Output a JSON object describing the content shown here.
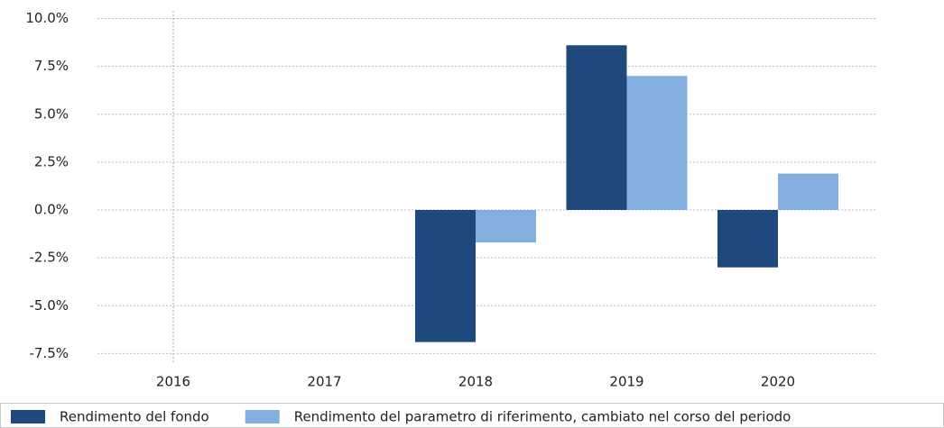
{
  "chart_data": {
    "type": "bar",
    "categories": [
      "2016",
      "2017",
      "2018",
      "2019",
      "2020"
    ],
    "series": [
      {
        "name": "Rendimento del fondo",
        "color": "#1f497d",
        "values": [
          null,
          null,
          -6.9,
          8.6,
          -3.0
        ]
      },
      {
        "name": "Rendimento del parametro di riferimento, cambiato nel corso del periodo",
        "color": "#84aee0",
        "values": [
          null,
          null,
          -1.7,
          7.0,
          1.9
        ]
      }
    ],
    "ylim": [
      -8,
      10.4
    ],
    "yticks": [
      {
        "value": -7.5,
        "label": "-7.5%"
      },
      {
        "value": -5,
        "label": "-5.0%"
      },
      {
        "value": -2.5,
        "label": "-2.5%"
      },
      {
        "value": 0,
        "label": "0.0%"
      },
      {
        "value": 2.5,
        "label": "2.5%"
      },
      {
        "value": 5,
        "label": "5.0%"
      },
      {
        "value": 7.5,
        "label": "7.5%"
      },
      {
        "value": 10,
        "label": "10.0%"
      }
    ],
    "grid": true,
    "legend": "bottom"
  }
}
